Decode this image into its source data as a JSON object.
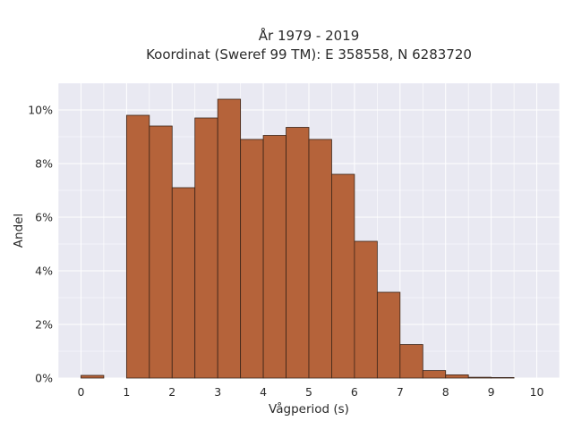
{
  "chart_data": {
    "type": "bar",
    "title": "År 1979 - 2019",
    "subtitle": "Koordinat (Sweref 99 TM): E 358558, N 6283720",
    "xlabel": "Vågperiod (s)",
    "ylabel": "Andel",
    "xlim": [
      -0.5,
      10.5
    ],
    "ylim": [
      0,
      11
    ],
    "xticks": [
      0,
      1,
      2,
      3,
      4,
      5,
      6,
      7,
      8,
      9,
      10
    ],
    "yticks": [
      0,
      2,
      4,
      6,
      8,
      10
    ],
    "ytick_suffix": "%",
    "bin_width": 0.5,
    "bins": [
      {
        "x0": 0.0,
        "value": 0.1
      },
      {
        "x0": 0.5,
        "value": 0.0
      },
      {
        "x0": 1.0,
        "value": 9.8
      },
      {
        "x0": 1.5,
        "value": 9.4
      },
      {
        "x0": 2.0,
        "value": 7.1
      },
      {
        "x0": 2.5,
        "value": 9.7
      },
      {
        "x0": 3.0,
        "value": 10.4
      },
      {
        "x0": 3.5,
        "value": 8.9
      },
      {
        "x0": 4.0,
        "value": 9.05
      },
      {
        "x0": 4.5,
        "value": 9.35
      },
      {
        "x0": 5.0,
        "value": 8.9
      },
      {
        "x0": 5.5,
        "value": 7.6
      },
      {
        "x0": 6.0,
        "value": 5.1
      },
      {
        "x0": 6.5,
        "value": 3.2
      },
      {
        "x0": 7.0,
        "value": 1.25
      },
      {
        "x0": 7.5,
        "value": 0.28
      },
      {
        "x0": 8.0,
        "value": 0.12
      },
      {
        "x0": 8.5,
        "value": 0.03
      },
      {
        "x0": 9.0,
        "value": 0.02
      }
    ],
    "grid": true,
    "colors": {
      "bar_fill": "#b5633a",
      "bar_stroke": "#3a2418",
      "plot_background": "#e9e9f2",
      "grid": "#ffffff"
    }
  }
}
